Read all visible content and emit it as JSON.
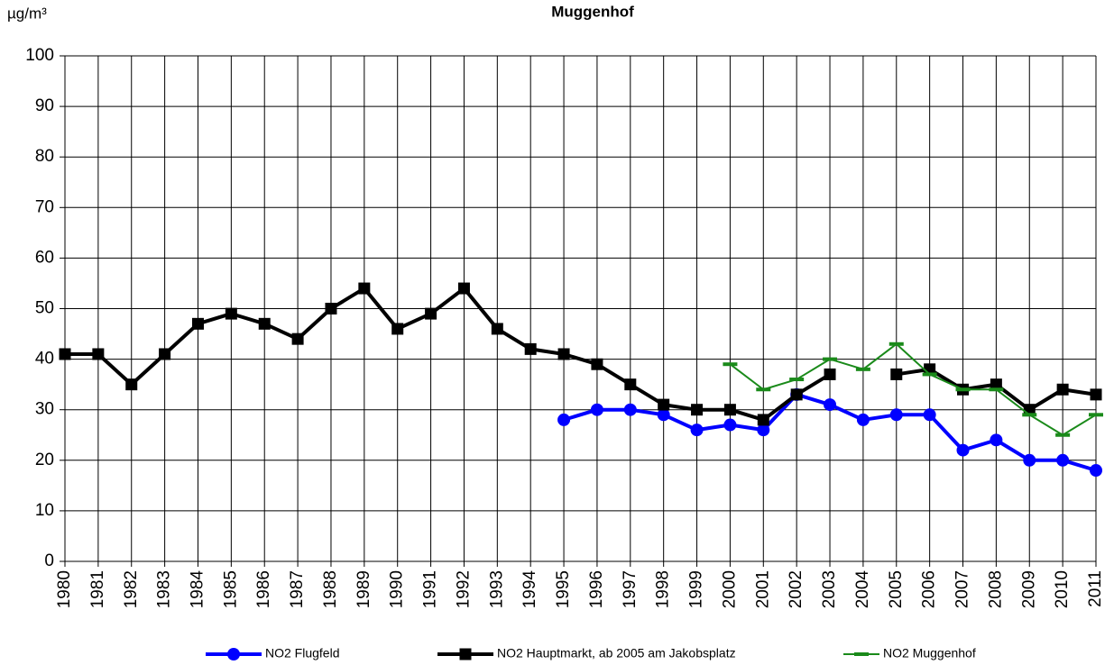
{
  "chart_data": {
    "type": "line",
    "title": "Muggenhof",
    "y_label": "µg/m³",
    "categories": [
      "1980",
      "1981",
      "1982",
      "1983",
      "1984",
      "1985",
      "1986",
      "1987",
      "1988",
      "1989",
      "1990",
      "1991",
      "1992",
      "1993",
      "1994",
      "1995",
      "1996",
      "1997",
      "1998",
      "1999",
      "2000",
      "2001",
      "2002",
      "2003",
      "2004",
      "2005",
      "2006",
      "2007",
      "2008",
      "2009",
      "2010",
      "2011"
    ],
    "series": [
      {
        "name": "NO2 Flugfeld",
        "color": "#0000ff",
        "marker": "circle",
        "values": [
          null,
          null,
          null,
          null,
          null,
          null,
          null,
          null,
          null,
          null,
          null,
          null,
          null,
          null,
          null,
          28,
          30,
          30,
          29,
          26,
          27,
          26,
          33,
          31,
          28,
          29,
          29,
          22,
          24,
          20,
          20,
          18
        ]
      },
      {
        "name": "NO2 Hauptmarkt, ab 2005 am Jakobsplatz",
        "color": "#000000",
        "marker": "square",
        "values": [
          41,
          41,
          35,
          41,
          47,
          49,
          47,
          44,
          50,
          54,
          46,
          49,
          54,
          46,
          42,
          41,
          39,
          35,
          31,
          30,
          30,
          28,
          33,
          37,
          null,
          37,
          38,
          34,
          35,
          30,
          34,
          33
        ]
      },
      {
        "name": "NO2 Muggenhof",
        "color": "#1a8a1a",
        "marker": "dash",
        "values": [
          null,
          null,
          null,
          null,
          null,
          null,
          null,
          null,
          null,
          null,
          null,
          null,
          null,
          null,
          null,
          null,
          null,
          null,
          null,
          null,
          39,
          34,
          36,
          40,
          38,
          43,
          37,
          34,
          34,
          29,
          25,
          29
        ]
      }
    ],
    "ylim": [
      0,
      100
    ],
    "yticks": [
      0,
      10,
      20,
      30,
      40,
      50,
      60,
      70,
      80,
      90,
      100
    ],
    "grid": true
  }
}
